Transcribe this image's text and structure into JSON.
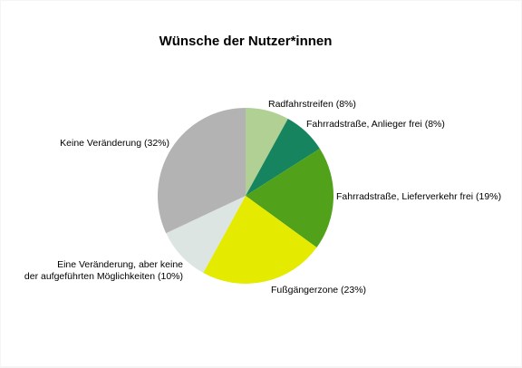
{
  "chart_data": {
    "type": "pie",
    "title": "Wünsche der Nutzer*innen",
    "start_angle_deg": 0,
    "direction": "clockwise",
    "slices": [
      {
        "label": "Radfahrstreifen (8%)",
        "value": 8,
        "color": "#b1d094"
      },
      {
        "label": "Fahrradstraße, Anlieger frei (8%)",
        "value": 8,
        "color": "#16855f"
      },
      {
        "label": "Fahrradstraße, Lieferverkehr frei (19%)",
        "value": 19,
        "color": "#52a11a"
      },
      {
        "label": "Fußgängerzone (23%)",
        "value": 23,
        "color": "#e4eb00"
      },
      {
        "label_lines": [
          "Eine Veränderung, aber keine",
          "der aufgeführten Möglichkeiten (10%)"
        ],
        "value": 10,
        "color": "#dde5e3"
      },
      {
        "label": "Keine Veränderung (32%)",
        "value": 32,
        "color": "#b3b3b3"
      }
    ]
  }
}
